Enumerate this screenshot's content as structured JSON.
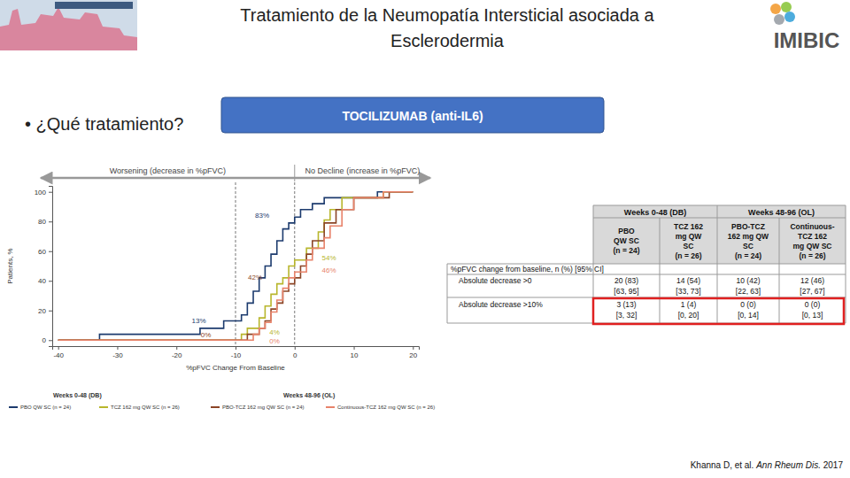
{
  "header": {
    "title_lines": [
      "Tratamiento de la Neumopatía Intersticial asociada a",
      "Esclerodermia"
    ],
    "logo": "IMIBIC"
  },
  "bullet": "• ¿Qué tratamiento?",
  "button": "TOCILIZUMAB (anti-IL6)",
  "citation": [
    "Khanna D, et al. ",
    "Ann Rheum Dis.",
    " 2017"
  ],
  "chart_data": {
    "type": "line",
    "line_style": "step",
    "xlabel": "%pFVC Change From Baseline",
    "ylabel": "Patients, %",
    "direction_labels": [
      "Worsening (decrease in %pFVC)",
      "No Decline (increase in %pFVC)"
    ],
    "xlim": [
      -41,
      21
    ],
    "xticks": [
      -40,
      -30,
      -20,
      -10,
      0,
      10,
      20
    ],
    "ylim": [
      -4,
      104
    ],
    "yticks": [
      0,
      20,
      40,
      60,
      80,
      100
    ],
    "vlines": [
      -10,
      0
    ],
    "legend_titles": [
      "Weeks 0-48 (DB)",
      "Weeks 48-96 (OL)"
    ],
    "series": [
      {
        "name": "PBO QW SC (n = 24)",
        "color": "#1c3b6e",
        "x": [
          -40,
          -33,
          -16,
          -12,
          -9,
          -8,
          -7,
          -6,
          -5,
          -4,
          -3,
          -2,
          -1,
          0,
          1,
          3,
          5,
          14,
          20
        ],
        "values": [
          0,
          4,
          8,
          13,
          17,
          25,
          33,
          42,
          50,
          58,
          67,
          75,
          79,
          83,
          88,
          92,
          96,
          100,
          100
        ]
      },
      {
        "name": "TCZ 162 mg QW SC (n = 26)",
        "color": "#b8b62c",
        "x": [
          -40,
          -9,
          -8,
          -6,
          -5,
          -4,
          -3,
          -2,
          -1,
          0,
          2,
          4,
          5,
          6,
          8,
          15,
          20
        ],
        "values": [
          0,
          4,
          8,
          15,
          23,
          31,
          38,
          42,
          50,
          54,
          62,
          73,
          81,
          88,
          96,
          100,
          100
        ]
      },
      {
        "name": "PBO-TCZ 162 mg QW SC (n = 24)",
        "color": "#8b4526",
        "x": [
          -40,
          -8,
          -6,
          -5,
          -4,
          -3,
          -2,
          -1,
          0,
          1,
          2,
          3,
          5,
          7,
          10,
          16,
          20
        ],
        "values": [
          0,
          4,
          8,
          13,
          21,
          25,
          33,
          38,
          42,
          50,
          58,
          67,
          79,
          88,
          96,
          100,
          100
        ]
      },
      {
        "name": "Continuous-TCZ 162 mg QW SC (n = 26)",
        "color": "#e8836b",
        "x": [
          -40,
          -7,
          -6,
          -5,
          -4,
          -3,
          -2,
          -1,
          0,
          2,
          3,
          5,
          6,
          8,
          10,
          15,
          20
        ],
        "values": [
          0,
          4,
          8,
          12,
          19,
          27,
          35,
          42,
          46,
          54,
          62,
          69,
          77,
          88,
          96,
          100,
          100
        ]
      }
    ],
    "annotations": [
      {
        "text": "83%",
        "x": -5.5,
        "y": 84,
        "color": "#1c3b6e"
      },
      {
        "text": "54%",
        "x": 5.8,
        "y": 55,
        "color": "#b8b62c"
      },
      {
        "text": "46%",
        "x": 5.8,
        "y": 47,
        "color": "#e8836b"
      },
      {
        "text": "42%",
        "x": -6.7,
        "y": 42,
        "color": "#8b4526"
      },
      {
        "text": "13%",
        "x": -16.2,
        "y": 13,
        "color": "#1c3b6e"
      },
      {
        "text": "0%",
        "x": -15,
        "y": 3,
        "color": "#8b4526"
      },
      {
        "text": "4%",
        "x": -3.4,
        "y": 5,
        "color": "#b8b62c"
      },
      {
        "text": "0%",
        "x": -3.4,
        "y": -1,
        "color": "#e8836b"
      }
    ]
  },
  "table": {
    "group_headers": [
      "Weeks 0-48 (DB)",
      "Weeks 48-96 (OL)"
    ],
    "column_headers": [
      [
        "PBO",
        "QW SC",
        "(n = 24)"
      ],
      [
        "TCZ 162",
        "mg QW",
        "SC",
        "(n = 26)"
      ],
      [
        "PBO-TCZ",
        "162 mg QW",
        "SC",
        "(n = 24)"
      ],
      [
        "Continuous-",
        "TCZ 162",
        "mg QW SC",
        "(n = 26)"
      ]
    ],
    "section_label": "%pFVC change from baseline, n (%) [95% CI]",
    "rows": [
      {
        "label": "Absolute decrease >0",
        "cells": [
          [
            "20 (83)",
            "[63, 95]"
          ],
          [
            "14 (54)",
            "[33, 73]"
          ],
          [
            "10 (42)",
            "[22, 63]"
          ],
          [
            "12 (46)",
            "[27, 67]"
          ]
        ]
      },
      {
        "label": "Absolute decrease >10%",
        "cells": [
          [
            "3 (13)",
            "[3, 32]"
          ],
          [
            "1 (4)",
            "[0, 20]"
          ],
          [
            "0 (0)",
            "[0, 14]"
          ],
          [
            "0 (0)",
            "[0, 13]"
          ]
        ]
      }
    ]
  }
}
